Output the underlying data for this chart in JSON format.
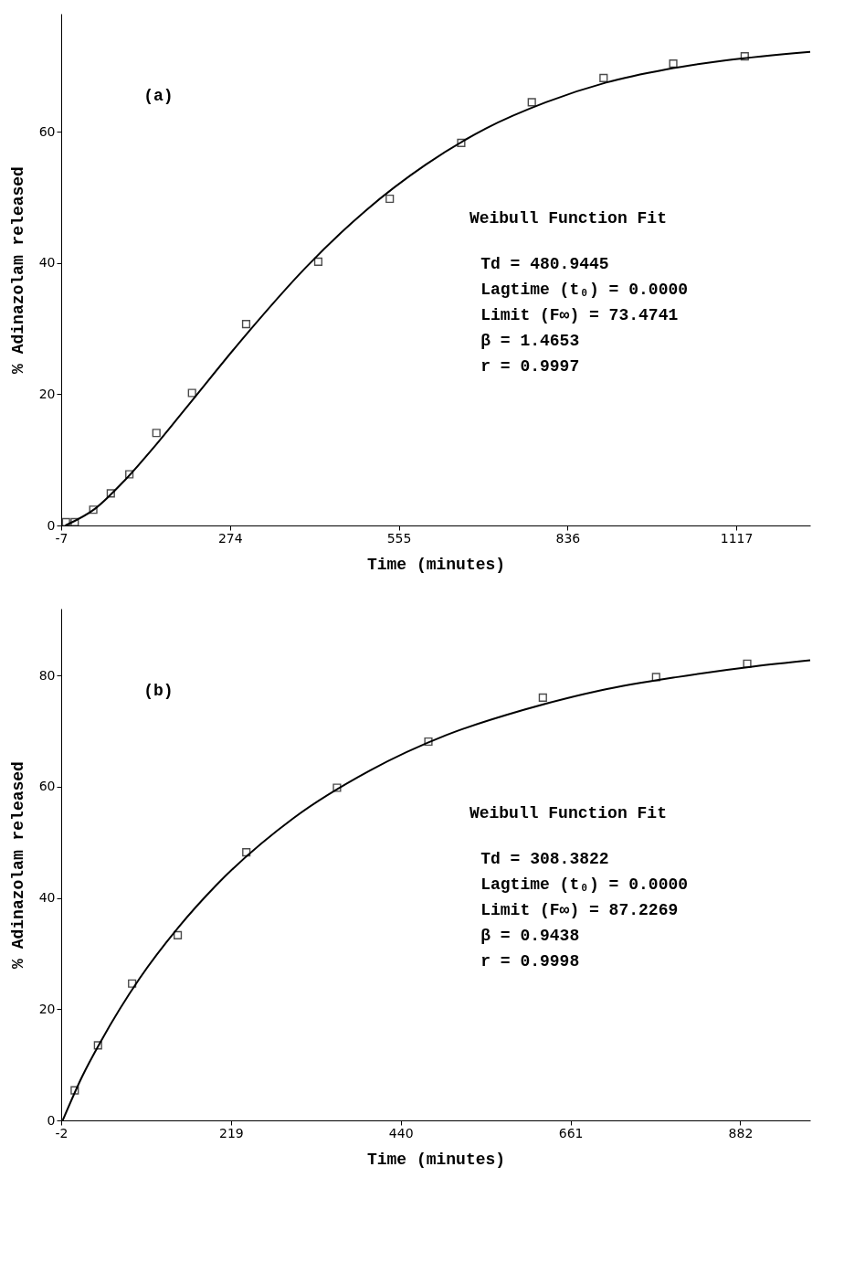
{
  "chart_data": [
    {
      "type": "scatter",
      "xlabel": "Time (minutes)",
      "ylabel": "% Adinazolam released",
      "xlim": [
        -7,
        1240
      ],
      "xticks": [
        -7,
        274,
        555,
        836,
        1117
      ],
      "ylim": [
        0,
        78
      ],
      "yticks": [
        0,
        20,
        40,
        60
      ],
      "grid": false,
      "annotations": [
        "(a)",
        "Weibull Function Fit",
        "Td = 480.9445",
        "Lagtime (t₀) = 0.0000",
        "Limit (F∞) = 73.4741",
        "β = 1.4653",
        "r = 0.9997"
      ],
      "series": [
        {
          "marker": "square",
          "color": "#000000",
          "x": [
            1,
            15.5,
            46.4,
            75.6,
            106.5,
            151.5,
            210.8,
            300.9,
            421,
            540,
            659,
            776.5,
            896,
            1012,
            1131
          ],
          "values": [
            0.5,
            0.5,
            2.4,
            4.9,
            7.8,
            14.1,
            20.2,
            30.7,
            40.2,
            49.8,
            58.3,
            64.5,
            68.2,
            70.4,
            71.5
          ]
        },
        {
          "type": "line",
          "marker": "none",
          "line_style": "solid",
          "color": "#000000",
          "x": [
            0,
            50,
            100,
            150,
            200,
            300,
            400,
            500,
            600,
            700,
            800,
            900,
            1000,
            1100,
            1240
          ],
          "values": [
            0,
            2.6,
            7.0,
            12.2,
            17.8,
            29.0,
            39.3,
            48.0,
            55.0,
            60.5,
            64.5,
            67.5,
            69.5,
            70.9,
            72.2
          ]
        }
      ]
    },
    {
      "type": "scatter",
      "xlabel": "Time (minutes)",
      "ylabel": "% Adinazolam released",
      "xlim": [
        -2,
        973
      ],
      "xticks": [
        -2,
        219,
        440,
        661,
        882
      ],
      "ylim": [
        0,
        92
      ],
      "yticks": [
        0,
        20,
        40,
        60,
        80
      ],
      "grid": false,
      "annotations": [
        "(b)",
        "Weibull Function Fit",
        "Td = 308.3822",
        "Lagtime (t₀) = 0.0000",
        "Limit (F∞) = 87.2269",
        "β = 0.9438",
        "r = 0.9998"
      ],
      "series": [
        {
          "marker": "square",
          "color": "#000000",
          "x": [
            15.6,
            45.9,
            90.3,
            149.7,
            239,
            357,
            476,
            625,
            772.4,
            891
          ],
          "values": [
            5.4,
            13.5,
            24.6,
            33.3,
            48.2,
            59.8,
            68.1,
            76.0,
            79.7,
            82.1
          ]
        },
        {
          "type": "line",
          "marker": "none",
          "line_style": "solid",
          "color": "#000000",
          "x": [
            0,
            25,
            50,
            100,
            150,
            200,
            300,
            400,
            500,
            600,
            700,
            800,
            900,
            973
          ],
          "values": [
            0,
            7.8,
            14.3,
            25.5,
            34.6,
            42.3,
            54.3,
            62.9,
            69.3,
            73.8,
            77.3,
            79.7,
            81.6,
            82.7
          ]
        }
      ]
    }
  ]
}
